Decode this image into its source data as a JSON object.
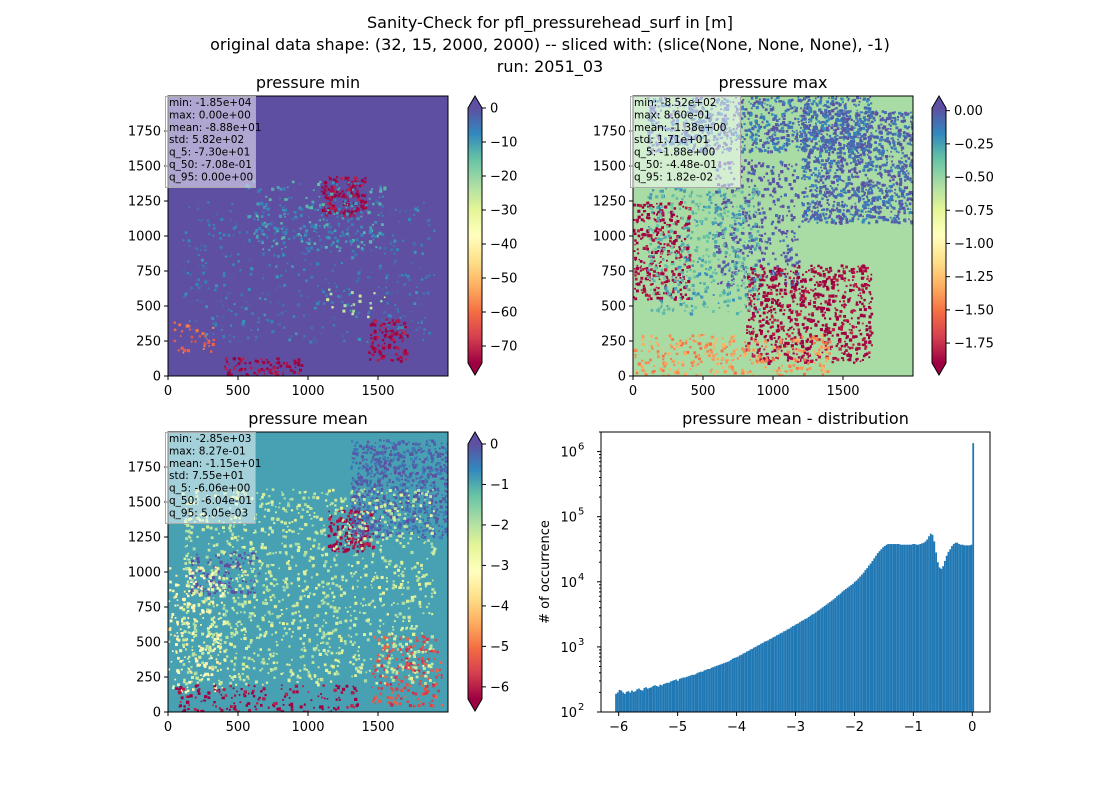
{
  "figure": {
    "title_lines": [
      "Sanity-Check for pfl_pressurehead_surf in [m]",
      "original data shape: (32, 15, 2000, 2000) -- sliced with: (slice(None, None, None), -1)",
      "run: 2051_03"
    ]
  },
  "chart_data": [
    {
      "type": "heatmap",
      "title": "pressure min",
      "colormap": "Spectral",
      "xlim": [
        0,
        2000
      ],
      "ylim": [
        0,
        2000
      ],
      "xticks": [
        0,
        500,
        1000,
        1500
      ],
      "yticks": [
        0,
        250,
        500,
        750,
        1000,
        1250,
        1500,
        1750
      ],
      "colorbar": {
        "range": [
          -75,
          0
        ],
        "ticks": [
          0,
          -10,
          -20,
          -30,
          -40,
          -50,
          -60,
          -70
        ],
        "extend": "both"
      },
      "background_value": 0.0,
      "stats": [
        "min: -1.85e+04",
        "max: 0.00e+00",
        "mean: -8.88e+01",
        "std: 5.82e+02",
        "q_5: -7.30e+01",
        "q_50: -7.08e-01",
        "q_95: 0.00e+00"
      ],
      "features": [
        {
          "x": 1250,
          "y": 1290,
          "w": 320,
          "h": 280,
          "value": -75,
          "density": 0.85
        },
        {
          "x": 680,
          "y": 70,
          "w": 560,
          "h": 140,
          "value": -75,
          "density": 0.55
        },
        {
          "x": 1560,
          "y": 260,
          "w": 280,
          "h": 300,
          "value": -75,
          "density": 0.75
        },
        {
          "x": 1050,
          "y": 1150,
          "w": 1000,
          "h": 500,
          "value": -10,
          "density": 0.2
        },
        {
          "x": 1000,
          "y": 750,
          "w": 1800,
          "h": 1000,
          "value": -5,
          "density": 0.12
        },
        {
          "x": 180,
          "y": 280,
          "w": 300,
          "h": 220,
          "value": -60,
          "density": 0.25
        },
        {
          "x": 1350,
          "y": 530,
          "w": 500,
          "h": 220,
          "value": -25,
          "density": 0.08
        }
      ]
    },
    {
      "type": "heatmap",
      "title": "pressure max",
      "colormap": "Spectral",
      "xlim": [
        0,
        2000
      ],
      "ylim": [
        0,
        2000
      ],
      "xticks": [
        0,
        500,
        1000,
        1500
      ],
      "yticks": [
        0,
        250,
        500,
        750,
        1000,
        1250,
        1500,
        1750
      ],
      "colorbar": {
        "range": [
          -1.9,
          0.02
        ],
        "ticks": [
          0.0,
          -0.25,
          -0.5,
          -0.75,
          -1.0,
          -1.25,
          -1.5,
          -1.75
        ],
        "tick_labels": [
          "0.00",
          "−0.25",
          "−0.50",
          "−0.75",
          "−1.00",
          "−1.25",
          "−1.50",
          "−1.75"
        ],
        "extend": "both"
      },
      "background_value": -0.55,
      "stats": [
        "min: -8.52e+02",
        "max: 8.60e-01",
        "mean: -1.38e+00",
        "std: 1.71e+01",
        "q_5: -1.88e+00",
        "q_50: -4.48e-01",
        "q_95: 1.82e-02"
      ],
      "features": [
        {
          "x": 1600,
          "y": 1500,
          "w": 800,
          "h": 800,
          "value": -0.05,
          "density": 0.9
        },
        {
          "x": 900,
          "y": 1800,
          "w": 1600,
          "h": 400,
          "value": -0.08,
          "density": 0.7
        },
        {
          "x": 880,
          "y": 1100,
          "w": 600,
          "h": 900,
          "value": 0.02,
          "density": 0.35
        },
        {
          "x": 1250,
          "y": 450,
          "w": 900,
          "h": 700,
          "value": -1.9,
          "density": 0.6
        },
        {
          "x": 200,
          "y": 900,
          "w": 400,
          "h": 700,
          "value": -1.9,
          "density": 0.5
        },
        {
          "x": 700,
          "y": 150,
          "w": 1400,
          "h": 300,
          "value": -1.4,
          "density": 0.35
        },
        {
          "x": 500,
          "y": 900,
          "w": 800,
          "h": 900,
          "value": -0.3,
          "density": 0.3
        }
      ]
    },
    {
      "type": "heatmap",
      "title": "pressure mean",
      "colormap": "Spectral",
      "xlim": [
        0,
        2000
      ],
      "ylim": [
        0,
        2000
      ],
      "xticks": [
        0,
        500,
        1000,
        1500
      ],
      "yticks": [
        0,
        250,
        500,
        750,
        1000,
        1250,
        1500,
        1750
      ],
      "colorbar": {
        "range": [
          -6.3,
          0
        ],
        "ticks": [
          0,
          -1,
          -2,
          -3,
          -4,
          -5,
          -6
        ],
        "extend": "both"
      },
      "background_value": -0.9,
      "stats": [
        "min: -2.85e+03",
        "max: 8.27e-01",
        "mean: -1.15e+01",
        "std: 7.55e+01",
        "q_5: -6.06e+00",
        "q_50: -6.04e-01",
        "q_95: 5.05e-03"
      ],
      "features": [
        {
          "x": 1300,
          "y": 1300,
          "w": 320,
          "h": 300,
          "value": -6.3,
          "density": 0.8
        },
        {
          "x": 1650,
          "y": 1600,
          "w": 700,
          "h": 700,
          "value": -0.2,
          "density": 0.8
        },
        {
          "x": 400,
          "y": 1000,
          "w": 500,
          "h": 300,
          "value": 0.3,
          "density": 0.35
        },
        {
          "x": 200,
          "y": 600,
          "w": 400,
          "h": 900,
          "value": -3.2,
          "density": 0.3
        },
        {
          "x": 1700,
          "y": 300,
          "w": 500,
          "h": 500,
          "value": -5.5,
          "density": 0.35
        },
        {
          "x": 700,
          "y": 100,
          "w": 1300,
          "h": 200,
          "value": -6.3,
          "density": 0.3
        },
        {
          "x": 1000,
          "y": 900,
          "w": 1800,
          "h": 1400,
          "value": -2.2,
          "density": 0.25
        }
      ]
    },
    {
      "type": "bar",
      "title": "pressure mean - distribution",
      "xlabel": "",
      "ylabel": "# of occurrence",
      "yscale": "log",
      "xlim": [
        -6.3,
        0.3
      ],
      "ylim": [
        100,
        2000000
      ],
      "xticks": [
        -6,
        -5,
        -4,
        -3,
        -2,
        -1,
        0
      ],
      "xtick_labels": [
        "−6",
        "−5",
        "−4",
        "−3",
        "−2",
        "−1",
        "0"
      ],
      "yticks": [
        100,
        1000,
        10000,
        100000,
        1000000
      ],
      "ytick_exponents": [
        "2",
        "3",
        "4",
        "5",
        "6"
      ],
      "bar_color": "#1f77b4",
      "bins": {
        "start": -6.06,
        "width": 0.03,
        "counts_log10": [
          2.28,
          2.3,
          2.34,
          2.33,
          2.3,
          2.28,
          2.31,
          2.32,
          2.3,
          2.33,
          2.31,
          2.32,
          2.35,
          2.36,
          2.34,
          2.33,
          2.37,
          2.38,
          2.36,
          2.37,
          2.38,
          2.4,
          2.41,
          2.4,
          2.39,
          2.42,
          2.41,
          2.43,
          2.44,
          2.45,
          2.45,
          2.47,
          2.48,
          2.49,
          2.5,
          2.48,
          2.51,
          2.52,
          2.53,
          2.53,
          2.54,
          2.55,
          2.56,
          2.57,
          2.57,
          2.58,
          2.6,
          2.61,
          2.62,
          2.62,
          2.64,
          2.65,
          2.66,
          2.66,
          2.68,
          2.69,
          2.7,
          2.71,
          2.72,
          2.73,
          2.74,
          2.75,
          2.76,
          2.77,
          2.78,
          2.8,
          2.82,
          2.83,
          2.84,
          2.85,
          2.87,
          2.88,
          2.9,
          2.91,
          2.93,
          2.94,
          2.96,
          2.97,
          2.99,
          3.0,
          3.02,
          3.03,
          3.05,
          3.06,
          3.08,
          3.09,
          3.1,
          3.12,
          3.13,
          3.15,
          3.16,
          3.18,
          3.19,
          3.21,
          3.22,
          3.24,
          3.25,
          3.27,
          3.28,
          3.3,
          3.32,
          3.33,
          3.35,
          3.36,
          3.38,
          3.4,
          3.41,
          3.43,
          3.44,
          3.46,
          3.48,
          3.5,
          3.51,
          3.53,
          3.55,
          3.57,
          3.59,
          3.61,
          3.63,
          3.65,
          3.67,
          3.69,
          3.71,
          3.73,
          3.75,
          3.78,
          3.8,
          3.82,
          3.85,
          3.87,
          3.89,
          3.91,
          3.93,
          3.95,
          3.97,
          4.0,
          4.02,
          4.05,
          4.08,
          4.11,
          4.14,
          4.18,
          4.21,
          4.25,
          4.28,
          4.32,
          4.36,
          4.4,
          4.44,
          4.47,
          4.5,
          4.53,
          4.55,
          4.57,
          4.58,
          4.58,
          4.58,
          4.58,
          4.58,
          4.58,
          4.58,
          4.57,
          4.57,
          4.57,
          4.57,
          4.57,
          4.57,
          4.57,
          4.58,
          4.58,
          4.57,
          4.57,
          4.58,
          4.59,
          4.6,
          4.62,
          4.65,
          4.7,
          4.74,
          4.72,
          4.62,
          4.45,
          4.3,
          4.22,
          4.2,
          4.24,
          4.32,
          4.4,
          4.46,
          4.5,
          4.55,
          4.58,
          4.6,
          4.6,
          4.58,
          4.57,
          4.57,
          4.56,
          4.56,
          4.56,
          4.56,
          4.57,
          6.13
        ]
      }
    }
  ]
}
